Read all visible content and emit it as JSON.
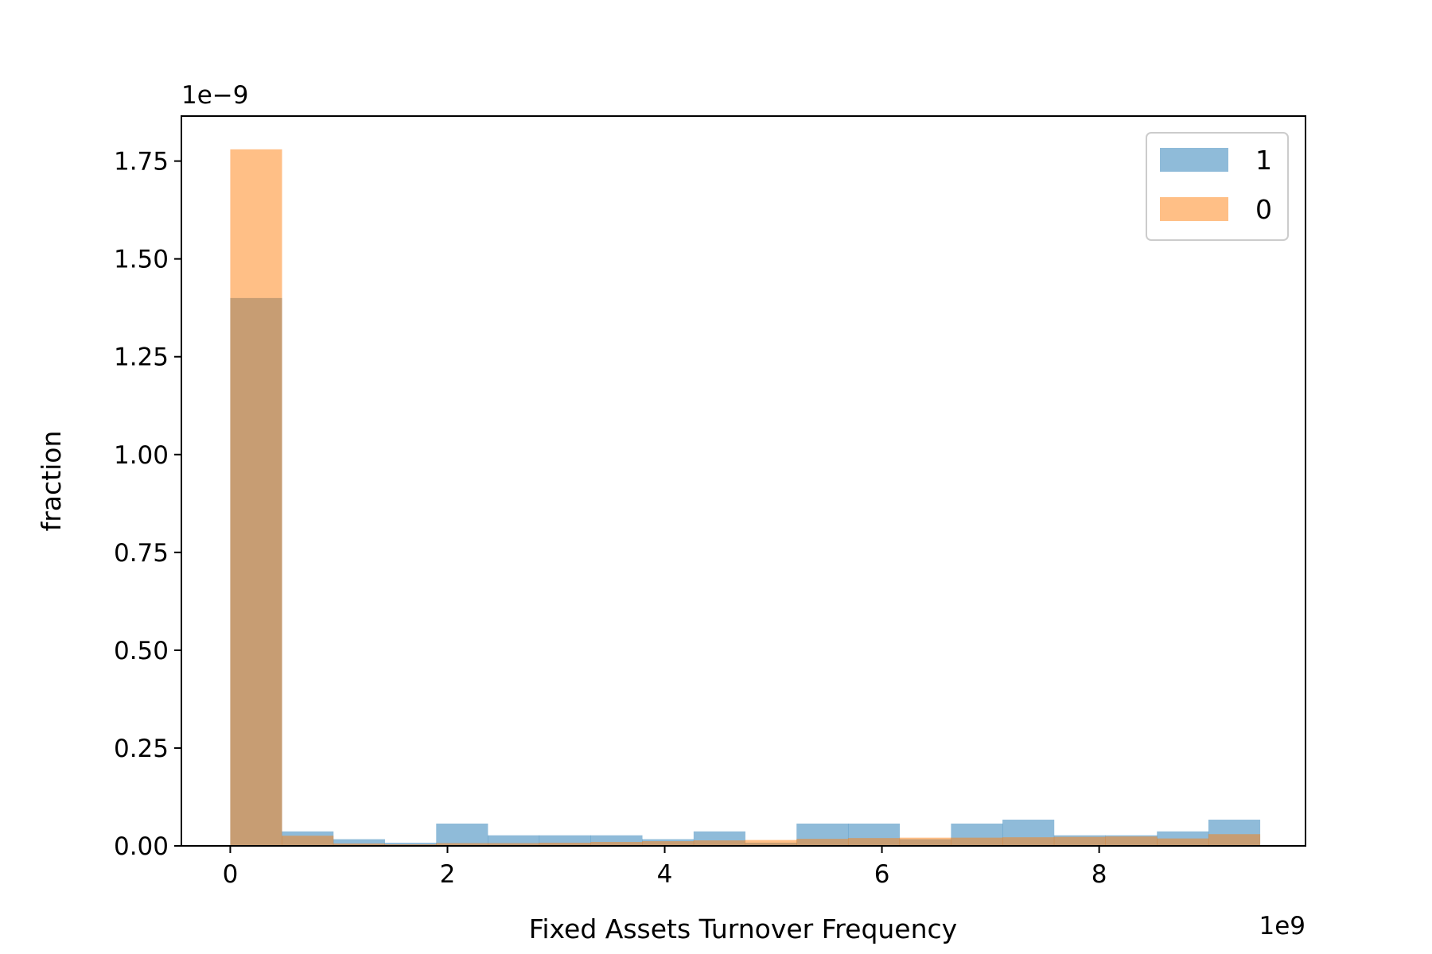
{
  "chart_data": {
    "type": "histogram",
    "xlabel": "Fixed Assets Turnover Frequency",
    "ylabel": "fraction",
    "x_offset_label": "1e9",
    "y_offset_label": "1e−9",
    "x_scale": 1000000000,
    "y_scale": 1e-09,
    "xlim": [
      -0.45,
      9.9
    ],
    "ylim": [
      0,
      1.865
    ],
    "xticks": [
      0,
      2,
      4,
      6,
      8
    ],
    "xtick_labels": [
      "0",
      "2",
      "4",
      "6",
      "8"
    ],
    "yticks": [
      0,
      0.25,
      0.5,
      0.75,
      1.0,
      1.25,
      1.5,
      1.75
    ],
    "ytick_labels": [
      "0.00",
      "0.25",
      "0.50",
      "0.75",
      "1.00",
      "1.25",
      "1.50",
      "1.75"
    ],
    "bin_edges": [
      0,
      0.474,
      0.948,
      1.422,
      1.896,
      2.37,
      2.844,
      3.318,
      3.792,
      4.266,
      4.74,
      5.214,
      5.688,
      6.162,
      6.636,
      7.11,
      7.584,
      8.058,
      8.532,
      9.006,
      9.48
    ],
    "series": [
      {
        "name": "1",
        "color": "#1f77b4",
        "opacity": 0.5,
        "values": [
          1.4,
          0.037,
          0.017,
          0.008,
          0.057,
          0.027,
          0.027,
          0.027,
          0.017,
          0.037,
          0.008,
          0.057,
          0.057,
          0.017,
          0.057,
          0.067,
          0.027,
          0.027,
          0.037,
          0.067
        ]
      },
      {
        "name": "0",
        "color": "#ff7f0e",
        "opacity": 0.5,
        "values": [
          1.78,
          0.026,
          0.006,
          0.004,
          0.007,
          0.007,
          0.008,
          0.01,
          0.012,
          0.014,
          0.015,
          0.018,
          0.02,
          0.021,
          0.021,
          0.022,
          0.023,
          0.024,
          0.019,
          0.03
        ]
      }
    ],
    "legend_position": "top-right",
    "grid": false
  }
}
